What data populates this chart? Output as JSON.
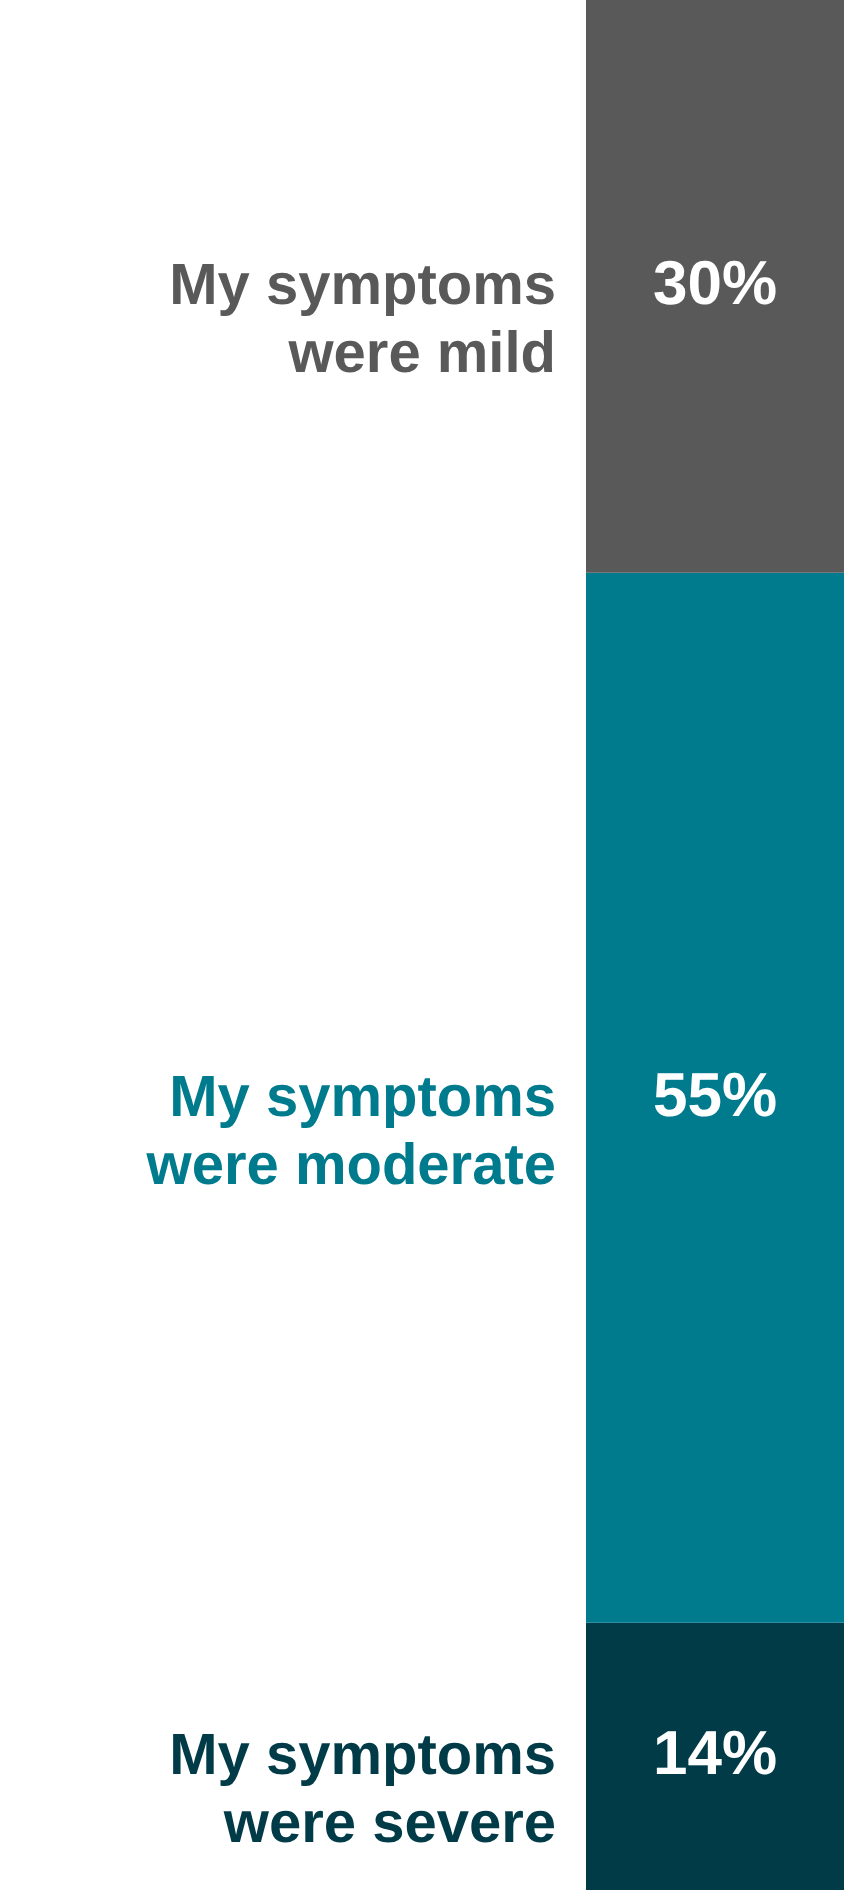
{
  "chart_data": {
    "type": "bar",
    "stacked": true,
    "categories": [
      null
    ],
    "series": [
      {
        "name": "My symptoms were severe",
        "color": "#003b47",
        "values": [
          14
        ],
        "value_labels": [
          "14%"
        ]
      },
      {
        "name": "My symptoms were moderate",
        "color": "#007b8e",
        "values": [
          55
        ],
        "value_labels": [
          "55%"
        ]
      },
      {
        "name": "My symptoms were mild",
        "color": "#595959",
        "values": [
          30
        ],
        "value_labels": [
          "30%"
        ]
      }
    ],
    "legend": false,
    "tick_labels": false
  }
}
